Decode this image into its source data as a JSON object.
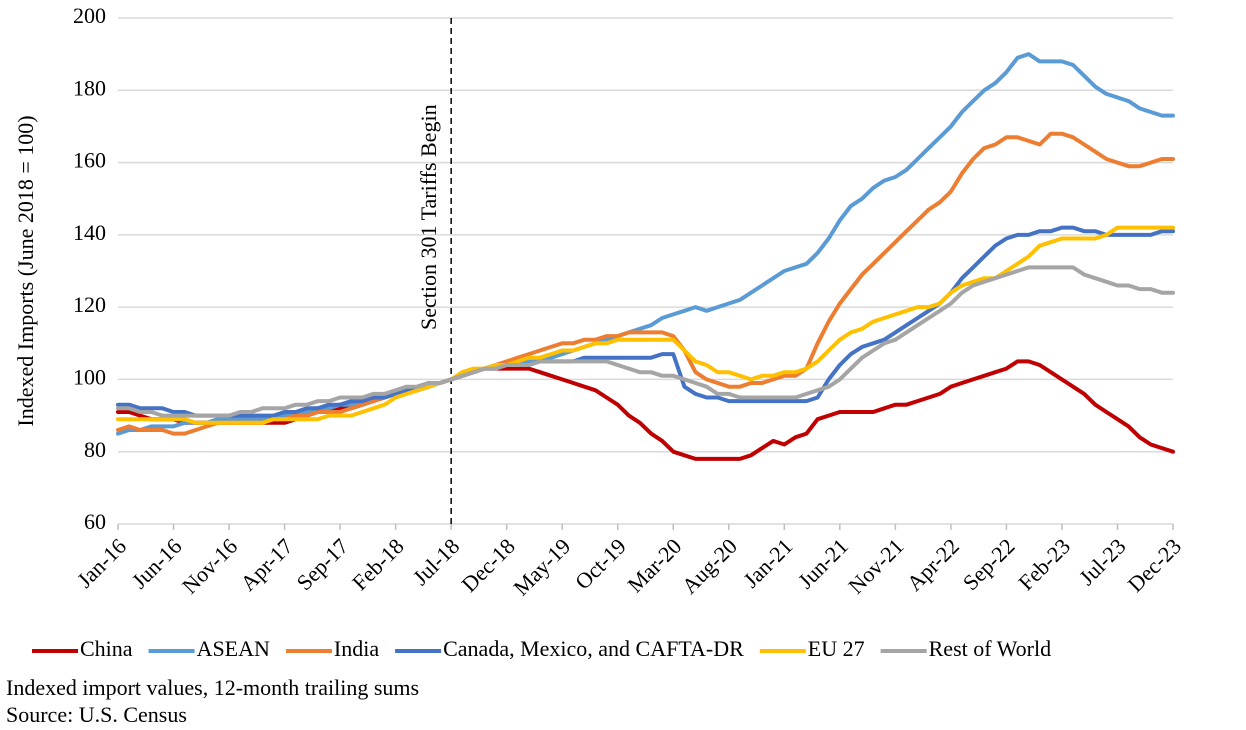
{
  "chart_data": {
    "type": "line",
    "y_label": "Indexed Imports (June 2018 = 100)",
    "annotation": {
      "text": "Section 301 Tariffs Begin",
      "x": "Jul-18"
    },
    "notes": [
      "Indexed import values, 12-month trailing sums",
      "Source: U.S. Census"
    ],
    "categories": [
      "Jan-16",
      null,
      null,
      null,
      null,
      "Jun-16",
      null,
      null,
      null,
      null,
      "Nov-16",
      null,
      null,
      null,
      null,
      "Apr-17",
      null,
      null,
      null,
      null,
      "Sep-17",
      null,
      null,
      null,
      null,
      "Feb-18",
      null,
      null,
      null,
      null,
      "Jul-18",
      null,
      null,
      null,
      null,
      "Dec-18",
      null,
      null,
      null,
      null,
      "May-19",
      null,
      null,
      null,
      null,
      "Oct-19",
      null,
      null,
      null,
      null,
      "Mar-20",
      null,
      null,
      null,
      null,
      "Aug-20",
      null,
      null,
      null,
      null,
      "Jan-21",
      null,
      null,
      null,
      null,
      "Jun-21",
      null,
      null,
      null,
      null,
      "Nov-21",
      null,
      null,
      null,
      null,
      "Apr-22",
      null,
      null,
      null,
      null,
      "Sep-22",
      null,
      null,
      null,
      null,
      "Feb-23",
      null,
      null,
      null,
      null,
      "Jul-23",
      null,
      null,
      null,
      null,
      "Dec-23"
    ],
    "ylim": [
      60,
      200
    ],
    "yticks": [
      60,
      80,
      100,
      120,
      140,
      160,
      180,
      200
    ],
    "grid": true,
    "series": [
      {
        "name": "China",
        "color": "#c00000",
        "values": [
          91,
          91,
          90,
          89,
          89,
          89,
          88,
          88,
          88,
          88,
          88,
          88,
          88,
          88,
          88,
          88,
          89,
          90,
          91,
          91,
          92,
          92,
          93,
          94,
          95,
          96,
          97,
          98,
          99,
          99,
          100,
          101,
          102,
          103,
          103,
          103,
          103,
          103,
          102,
          101,
          100,
          99,
          98,
          97,
          95,
          93,
          90,
          88,
          85,
          83,
          80,
          79,
          78,
          78,
          78,
          78,
          78,
          79,
          81,
          83,
          82,
          84,
          85,
          89,
          90,
          91,
          91,
          91,
          91,
          92,
          93,
          93,
          94,
          95,
          96,
          98,
          99,
          100,
          101,
          102,
          103,
          105,
          105,
          104,
          102,
          100,
          98,
          96,
          93,
          91,
          89,
          87,
          84,
          82,
          81,
          80
        ]
      },
      {
        "name": "ASEAN",
        "color": "#5b9bd5",
        "values": [
          85,
          86,
          86,
          87,
          87,
          87,
          88,
          88,
          88,
          89,
          89,
          89,
          89,
          89,
          90,
          90,
          91,
          91,
          92,
          92,
          93,
          93,
          94,
          95,
          95,
          96,
          97,
          97,
          98,
          99,
          100,
          101,
          102,
          103,
          104,
          104,
          105,
          105,
          106,
          106,
          107,
          108,
          109,
          110,
          111,
          112,
          113,
          114,
          115,
          117,
          118,
          119,
          120,
          119,
          120,
          121,
          122,
          124,
          126,
          128,
          130,
          131,
          132,
          135,
          139,
          144,
          148,
          150,
          153,
          155,
          156,
          158,
          161,
          164,
          167,
          170,
          174,
          177,
          180,
          182,
          185,
          189,
          190,
          188,
          188,
          188,
          187,
          184,
          181,
          179,
          178,
          177,
          175,
          174,
          173,
          173
        ]
      },
      {
        "name": "India",
        "color": "#ed7d31",
        "values": [
          86,
          87,
          86,
          86,
          86,
          85,
          85,
          86,
          87,
          88,
          88,
          88,
          88,
          88,
          89,
          89,
          90,
          90,
          91,
          91,
          91,
          92,
          93,
          94,
          95,
          96,
          97,
          98,
          99,
          99,
          100,
          101,
          102,
          103,
          104,
          105,
          106,
          107,
          108,
          109,
          110,
          110,
          111,
          111,
          112,
          112,
          113,
          113,
          113,
          113,
          112,
          108,
          102,
          100,
          99,
          98,
          98,
          99,
          99,
          100,
          101,
          101,
          103,
          110,
          116,
          121,
          125,
          129,
          132,
          135,
          138,
          141,
          144,
          147,
          149,
          152,
          157,
          161,
          164,
          165,
          167,
          167,
          166,
          165,
          168,
          168,
          167,
          165,
          163,
          161,
          160,
          159,
          159,
          160,
          161,
          161
        ]
      },
      {
        "name": "Canada, Mexico, and CAFTA-DR",
        "color": "#4472c4",
        "values": [
          93,
          93,
          92,
          92,
          92,
          91,
          91,
          90,
          90,
          90,
          90,
          90,
          90,
          90,
          90,
          91,
          91,
          92,
          92,
          93,
          93,
          94,
          94,
          95,
          95,
          96,
          97,
          98,
          99,
          99,
          100,
          101,
          102,
          103,
          103,
          104,
          104,
          104,
          105,
          105,
          105,
          105,
          106,
          106,
          106,
          106,
          106,
          106,
          106,
          107,
          107,
          98,
          96,
          95,
          95,
          94,
          94,
          94,
          94,
          94,
          94,
          94,
          94,
          95,
          100,
          104,
          107,
          109,
          110,
          111,
          113,
          115,
          117,
          119,
          121,
          124,
          128,
          131,
          134,
          137,
          139,
          140,
          140,
          141,
          141,
          142,
          142,
          141,
          141,
          140,
          140,
          140,
          140,
          140,
          141,
          141
        ]
      },
      {
        "name": "EU 27",
        "color": "#ffc000",
        "values": [
          89,
          89,
          89,
          89,
          89,
          89,
          89,
          88,
          88,
          88,
          88,
          88,
          88,
          88,
          89,
          89,
          89,
          89,
          89,
          90,
          90,
          90,
          91,
          92,
          93,
          95,
          96,
          97,
          98,
          99,
          100,
          102,
          103,
          103,
          104,
          104,
          105,
          106,
          106,
          107,
          108,
          108,
          109,
          110,
          110,
          111,
          111,
          111,
          111,
          111,
          111,
          108,
          105,
          104,
          102,
          102,
          101,
          100,
          101,
          101,
          102,
          102,
          103,
          105,
          108,
          111,
          113,
          114,
          116,
          117,
          118,
          119,
          120,
          120,
          121,
          124,
          126,
          127,
          128,
          128,
          130,
          132,
          134,
          137,
          138,
          139,
          139,
          139,
          139,
          140,
          142,
          142,
          142,
          142,
          142,
          142
        ]
      },
      {
        "name": "Rest of World",
        "color": "#a5a5a5",
        "values": [
          92,
          92,
          91,
          91,
          90,
          90,
          90,
          90,
          90,
          90,
          90,
          91,
          91,
          92,
          92,
          92,
          93,
          93,
          94,
          94,
          95,
          95,
          95,
          96,
          96,
          97,
          98,
          98,
          99,
          99,
          100,
          101,
          102,
          103,
          103,
          104,
          104,
          104,
          105,
          105,
          105,
          105,
          105,
          105,
          105,
          104,
          103,
          102,
          102,
          101,
          101,
          100,
          99,
          98,
          96,
          96,
          95,
          95,
          95,
          95,
          95,
          95,
          96,
          97,
          98,
          100,
          103,
          106,
          108,
          110,
          111,
          113,
          115,
          117,
          119,
          121,
          124,
          126,
          127,
          128,
          129,
          130,
          131,
          131,
          131,
          131,
          131,
          129,
          128,
          127,
          126,
          126,
          125,
          125,
          124,
          124
        ]
      }
    ]
  }
}
